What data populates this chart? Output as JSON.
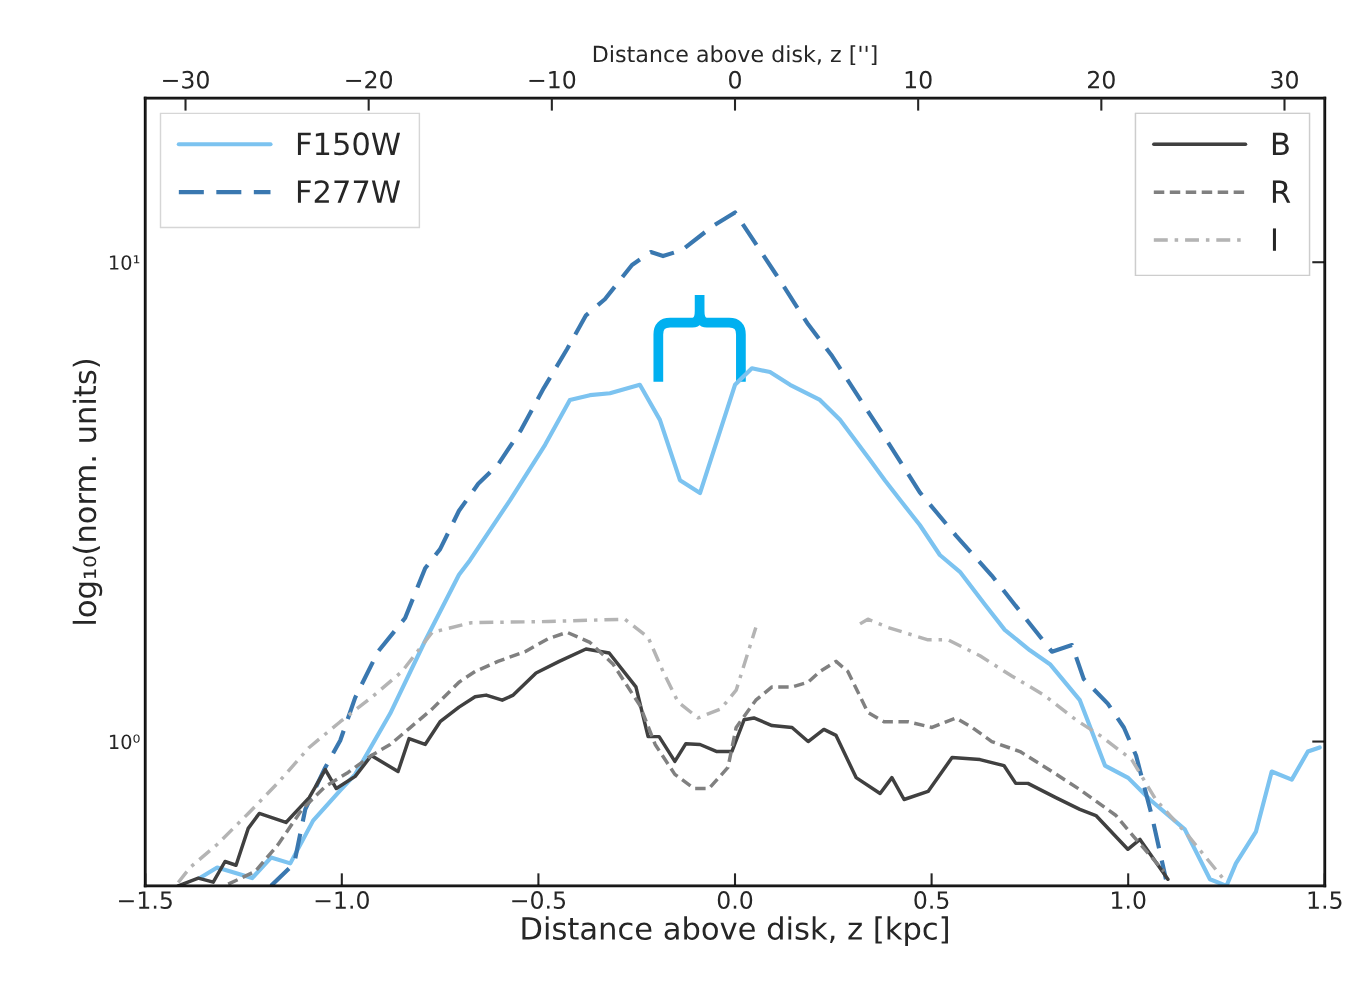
{
  "chart_data": {
    "type": "line",
    "xlabel": "Distance above disk, z [kpc]",
    "ylabel": "log₁₀(norm. units)",
    "x2label": "Distance above disk, z ['']",
    "legend": [
      "top left",
      "top left",
      "top right",
      "top right",
      "top right"
    ],
    "xlim": [
      -1.5,
      1.5
    ],
    "xticks": [
      {
        "value": -1.5,
        "label": "−1.5"
      },
      {
        "value": -1.0,
        "label": "−1.0"
      },
      {
        "value": -0.5,
        "label": "−0.5"
      },
      {
        "value": 0.0,
        "label": "0.0"
      },
      {
        "value": 0.5,
        "label": "0.5"
      },
      {
        "value": 1.0,
        "label": "1.0"
      },
      {
        "value": 1.5,
        "label": "1.5"
      }
    ],
    "x2lim": [
      -32.2,
      32.2
    ],
    "x2ticks": [
      {
        "value": -30,
        "label": "−30"
      },
      {
        "value": -20,
        "label": "−20"
      },
      {
        "value": -10,
        "label": "−10"
      },
      0,
      10,
      20,
      30
    ],
    "log": "y",
    "ylim": [
      0.5,
      22
    ],
    "yticks": [
      {
        "value": 1,
        "label": "10⁰"
      },
      {
        "value": 10,
        "label": "10¹"
      }
    ],
    "grid": false,
    "series": [
      {
        "name": "F150W",
        "color": "#7cc3f0",
        "line_style": "solid",
        "x": [
          -1.36,
          -1.317,
          -1.228,
          -1.18,
          -1.131,
          -1.073,
          -1.004,
          -0.966,
          -0.877,
          -0.788,
          -0.702,
          -0.674,
          -0.572,
          -0.483,
          -0.42,
          -0.369,
          -0.318,
          -0.242,
          -0.191,
          -0.14,
          -0.089,
          0.0,
          0.043,
          0.089,
          0.14,
          0.216,
          0.267,
          0.343,
          0.381,
          0.42,
          0.47,
          0.521,
          0.572,
          0.636,
          0.686,
          0.75,
          0.801,
          0.877,
          0.941,
          1.0,
          1.055,
          1.144,
          1.208,
          1.25,
          1.274,
          1.325,
          1.365,
          1.416,
          1.457,
          1.487
        ],
        "values": [
          0.52,
          0.546,
          0.519,
          0.573,
          0.557,
          0.684,
          0.791,
          0.854,
          1.144,
          1.623,
          2.228,
          2.39,
          3.19,
          4.16,
          5.16,
          5.28,
          5.33,
          5.55,
          4.69,
          3.51,
          3.3,
          5.55,
          6.01,
          5.9,
          5.55,
          5.16,
          4.69,
          3.87,
          3.51,
          3.19,
          2.83,
          2.45,
          2.26,
          1.93,
          1.71,
          1.55,
          1.45,
          1.22,
          0.891,
          0.84,
          0.757,
          0.656,
          0.516,
          0.5,
          0.557,
          0.649,
          0.866,
          0.833,
          0.953,
          0.972
        ]
      },
      {
        "name": "F277W",
        "color": "#3a78b0",
        "line_style": "dashed",
        "x": [
          -1.18,
          -1.121,
          -1.093,
          -1.042,
          -1.004,
          -0.966,
          -0.908,
          -0.839,
          -0.788,
          -0.75,
          -0.702,
          -0.653,
          -0.603,
          -0.544,
          -0.486,
          -0.427,
          -0.379,
          -0.331,
          -0.262,
          -0.214,
          -0.183,
          -0.135,
          -0.056,
          0.0,
          0.104,
          0.186,
          0.247,
          0.379,
          0.47,
          0.562,
          0.653,
          0.806,
          0.857,
          0.887,
          0.948,
          0.989,
          1.02,
          1.06,
          1.096
        ],
        "values": [
          0.5,
          0.557,
          0.722,
          0.883,
          1.005,
          1.235,
          1.54,
          1.81,
          2.3,
          2.52,
          3.03,
          3.45,
          3.78,
          4.47,
          5.47,
          6.59,
          7.75,
          8.37,
          9.87,
          10.5,
          10.3,
          10.6,
          11.9,
          12.7,
          9.44,
          7.42,
          6.37,
          4.34,
          3.31,
          2.69,
          2.22,
          1.54,
          1.59,
          1.35,
          1.2,
          1.07,
          0.935,
          0.701,
          0.516
        ]
      },
      {
        "name": "B",
        "color": "#404040",
        "line_style": "solid",
        "x": [
          -1.416,
          -1.365,
          -1.327,
          -1.297,
          -1.269,
          -1.238,
          -1.21,
          -1.142,
          -1.083,
          -1.042,
          -1.014,
          -0.966,
          -0.925,
          -0.857,
          -0.829,
          -0.788,
          -0.75,
          -0.702,
          -0.661,
          -0.633,
          -0.592,
          -0.564,
          -0.506,
          -0.447,
          -0.379,
          -0.32,
          -0.252,
          -0.221,
          -0.193,
          -0.153,
          -0.125,
          -0.089,
          -0.046,
          -0.008,
          0.023,
          0.048,
          0.094,
          0.145,
          0.186,
          0.226,
          0.257,
          0.308,
          0.369,
          0.399,
          0.43,
          0.491,
          0.552,
          0.623,
          0.684,
          0.714,
          0.745,
          0.816,
          0.877,
          0.918,
          0.999,
          1.03,
          1.101
        ],
        "values": [
          0.5,
          0.519,
          0.509,
          0.562,
          0.552,
          0.659,
          0.708,
          0.678,
          0.764,
          0.874,
          0.798,
          0.846,
          0.935,
          0.866,
          1.014,
          0.986,
          1.1,
          1.18,
          1.24,
          1.25,
          1.22,
          1.25,
          1.39,
          1.47,
          1.56,
          1.53,
          1.3,
          1.024,
          1.024,
          0.909,
          0.99,
          0.986,
          0.953,
          0.953,
          1.11,
          1.12,
          1.08,
          1.07,
          1.0,
          1.06,
          1.03,
          0.841,
          0.779,
          0.841,
          0.757,
          0.787,
          0.926,
          0.917,
          0.891,
          0.818,
          0.818,
          0.764,
          0.722,
          0.701,
          0.596,
          0.625,
          0.516
        ]
      },
      {
        "name": "R",
        "color": "#808080",
        "line_style": "dashed",
        "x": [
          -1.289,
          -1.22,
          -1.162,
          -1.101,
          -1.042,
          -0.984,
          -0.925,
          -0.877,
          -0.829,
          -0.77,
          -0.702,
          -0.661,
          -0.603,
          -0.534,
          -0.475,
          -0.427,
          -0.369,
          -0.31,
          -0.242,
          -0.203,
          -0.153,
          -0.104,
          -0.066,
          -0.018,
          0.003,
          0.053,
          0.094,
          0.145,
          0.186,
          0.216,
          0.257,
          0.287,
          0.338,
          0.379,
          0.44,
          0.501,
          0.562,
          0.603,
          0.653,
          0.725,
          0.806,
          0.877,
          0.969,
          1.02,
          1.091
        ],
        "values": [
          0.504,
          0.536,
          0.61,
          0.722,
          0.806,
          0.862,
          0.935,
          0.986,
          1.064,
          1.17,
          1.33,
          1.4,
          1.47,
          1.54,
          1.64,
          1.69,
          1.61,
          1.45,
          1.19,
          0.986,
          0.854,
          0.798,
          0.798,
          0.883,
          1.07,
          1.22,
          1.3,
          1.3,
          1.33,
          1.4,
          1.47,
          1.4,
          1.15,
          1.1,
          1.1,
          1.07,
          1.12,
          1.07,
          1.0,
          0.953,
          0.866,
          0.794,
          0.701,
          0.625,
          0.536
        ]
      },
      {
        "name": "I",
        "color": "#b4b4b4",
        "line_style": "dashdot",
        "x": [
          -1.416,
          -1.386,
          -1.317,
          -1.238,
          -1.162,
          -1.083,
          -1.004,
          -0.925,
          -0.847,
          -0.77,
          -0.671,
          -0.475,
          -0.28,
          -0.221,
          -0.183,
          -0.145,
          -0.094,
          -0.036,
          0.003,
          0.053,
          0.19,
          0.318,
          0.338,
          0.389,
          0.491,
          0.542,
          0.623,
          0.704,
          0.786,
          0.867,
          0.928,
          1.009,
          1.07,
          1.152,
          1.243
        ],
        "values": [
          0.508,
          0.546,
          0.61,
          0.708,
          0.821,
          0.972,
          1.1,
          1.235,
          1.4,
          1.69,
          1.77,
          1.78,
          1.8,
          1.65,
          1.4,
          1.21,
          1.12,
          1.17,
          1.28,
          1.73,
          null,
          1.76,
          1.8,
          1.73,
          1.63,
          1.63,
          1.51,
          1.37,
          1.25,
          1.11,
          1.03,
          0.917,
          0.757,
          0.637,
          0.516
        ]
      }
    ]
  }
}
